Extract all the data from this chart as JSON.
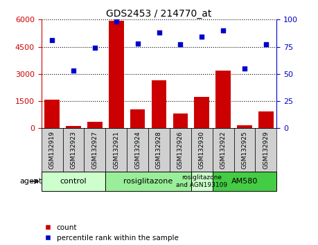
{
  "title": "GDS2453 / 214770_at",
  "samples": [
    "GSM132919",
    "GSM132923",
    "GSM132927",
    "GSM132921",
    "GSM132924",
    "GSM132928",
    "GSM132926",
    "GSM132930",
    "GSM132922",
    "GSM132925",
    "GSM132929"
  ],
  "counts": [
    1580,
    120,
    350,
    5950,
    1050,
    2650,
    800,
    1750,
    3200,
    150,
    950
  ],
  "percentiles": [
    81,
    53,
    74,
    98,
    78,
    88,
    77,
    84,
    90,
    55,
    77
  ],
  "bar_color": "#cc0000",
  "dot_color": "#0000cc",
  "ylim_left": [
    0,
    6000
  ],
  "ylim_right": [
    0,
    100
  ],
  "yticks_left": [
    0,
    1500,
    3000,
    4500,
    6000
  ],
  "yticks_right": [
    0,
    25,
    50,
    75,
    100
  ],
  "grid_color": "black",
  "agent_groups": [
    {
      "label": "control",
      "start": 0,
      "end": 3,
      "color": "#ccffcc"
    },
    {
      "label": "rosiglitazone",
      "start": 3,
      "end": 7,
      "color": "#99ee99"
    },
    {
      "label": "rosiglitazone\nand AGN193109",
      "start": 7,
      "end": 8,
      "color": "#ccffcc"
    },
    {
      "label": "AM580",
      "start": 8,
      "end": 11,
      "color": "#44cc44"
    }
  ],
  "legend_items": [
    {
      "label": "count",
      "color": "#cc0000"
    },
    {
      "label": "percentile rank within the sample",
      "color": "#0000cc"
    }
  ],
  "tick_color_left": "#cc0000",
  "tick_color_right": "#0000cc",
  "background_gray": "#d0d0d0",
  "background_plot": "#ffffff"
}
